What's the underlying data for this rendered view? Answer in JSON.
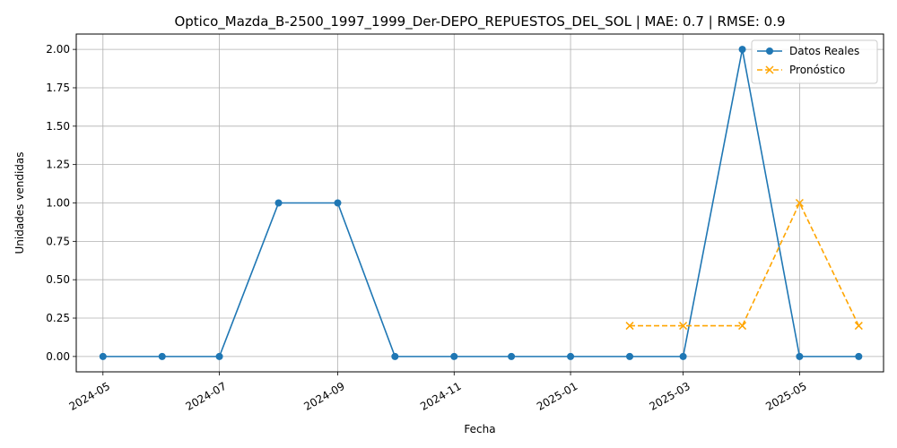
{
  "chart_data": {
    "type": "line",
    "title": "Optico_Mazda_B-2500_1997_1999_Der-DEPO_REPUESTOS_DEL_SOL | MAE: 0.7 | RMSE: 0.9",
    "xlabel": "Fecha",
    "ylabel": "Unidades vendidas",
    "ylim": [
      -0.1,
      2.1
    ],
    "xlim": [
      "2024-04-17",
      "2025-06-14"
    ],
    "grid": true,
    "legend_position": "top-right",
    "x_ticks": [
      "2024-05",
      "2024-07",
      "2024-09",
      "2024-11",
      "2025-01",
      "2025-03",
      "2025-05"
    ],
    "y_ticks": [
      "0.00",
      "0.25",
      "0.50",
      "0.75",
      "1.00",
      "1.25",
      "1.50",
      "1.75",
      "2.00"
    ],
    "series": [
      {
        "name": "Datos Reales",
        "color": "#1f77b4",
        "style": "solid",
        "marker": "circle",
        "x": [
          "2024-05-01",
          "2024-06-01",
          "2024-07-01",
          "2024-08-01",
          "2024-09-01",
          "2024-10-01",
          "2024-11-01",
          "2024-12-01",
          "2025-01-01",
          "2025-02-01",
          "2025-03-01",
          "2025-04-01",
          "2025-05-01",
          "2025-06-01"
        ],
        "values": [
          0,
          0,
          0,
          1,
          1,
          0,
          0,
          0,
          0,
          0,
          0,
          2,
          0,
          0
        ]
      },
      {
        "name": "Pronóstico",
        "color": "#ffa500",
        "style": "dashed",
        "marker": "x",
        "x": [
          "2025-02-01",
          "2025-03-01",
          "2025-04-01",
          "2025-05-01",
          "2025-06-01"
        ],
        "values": [
          0.2,
          0.2,
          0.2,
          1.0,
          0.2
        ]
      }
    ]
  }
}
